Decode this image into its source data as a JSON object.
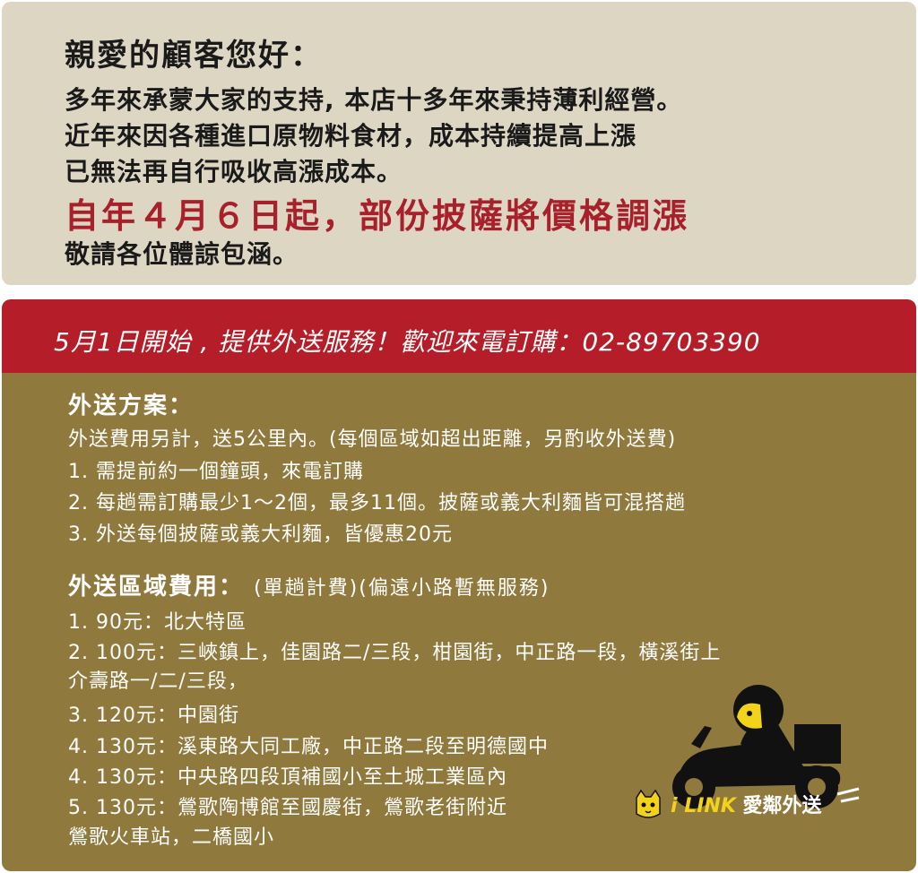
{
  "notice": {
    "greeting": "親愛的顧客您好：",
    "lines": [
      "多年來承蒙大家的支持, 本店十多年來秉持薄利經營。",
      "近年來因各種進口原物料食材，成本持續提高上漲",
      "已無法再自行吸收高漲成本。"
    ],
    "highlight": "自年４月６日起，部份披薩將價格調漲",
    "closing": "敬請各位體諒包涵。"
  },
  "banner": "5月1日開始 , 提供外送服務！歡迎來電訂購：02-89703390",
  "plan": {
    "title": "外送方案：",
    "items": [
      "外送費用另計，送5公里內。(每個區域如超出距離，另酌收外送費)",
      "1. 需提前約一個鐘頭，來電訂購",
      "2. 每趟需訂購最少1～2個，最多11個。披薩或義大利麵皆可混搭趟",
      "3. 外送每個披薩或義大利麵，皆優惠20元"
    ]
  },
  "fees": {
    "title": "外送區域費用：",
    "note": "(單趟計費)(偏遠小路暫無服務)",
    "items": [
      "1.    90元：北大特區",
      "2. 100元：三峽鎮上，佳園路二/三段，柑園街，中正路一段，橫溪街上",
      "             介壽路一/二/三段，",
      "3. 120元：中園街",
      "4. 130元：溪東路大同工廠，中正路二段至明德國中",
      "4. 130元：中央路四段頂補國小至土城工業區內",
      "5. 130元：鶯歌陶博館至國慶街，鶯歌老街附近",
      "             鶯歌火車站，二橋國小"
    ]
  },
  "brand": {
    "name": "i LINK",
    "sub": "愛鄰外送",
    "icons": [
      "cat-logo-icon",
      "delivery-scooter-icon"
    ]
  },
  "colors": {
    "notice_bg": "#ddd6c3",
    "red": "#b51e29",
    "brown": "#90793d",
    "highlight": "#a8202b"
  }
}
